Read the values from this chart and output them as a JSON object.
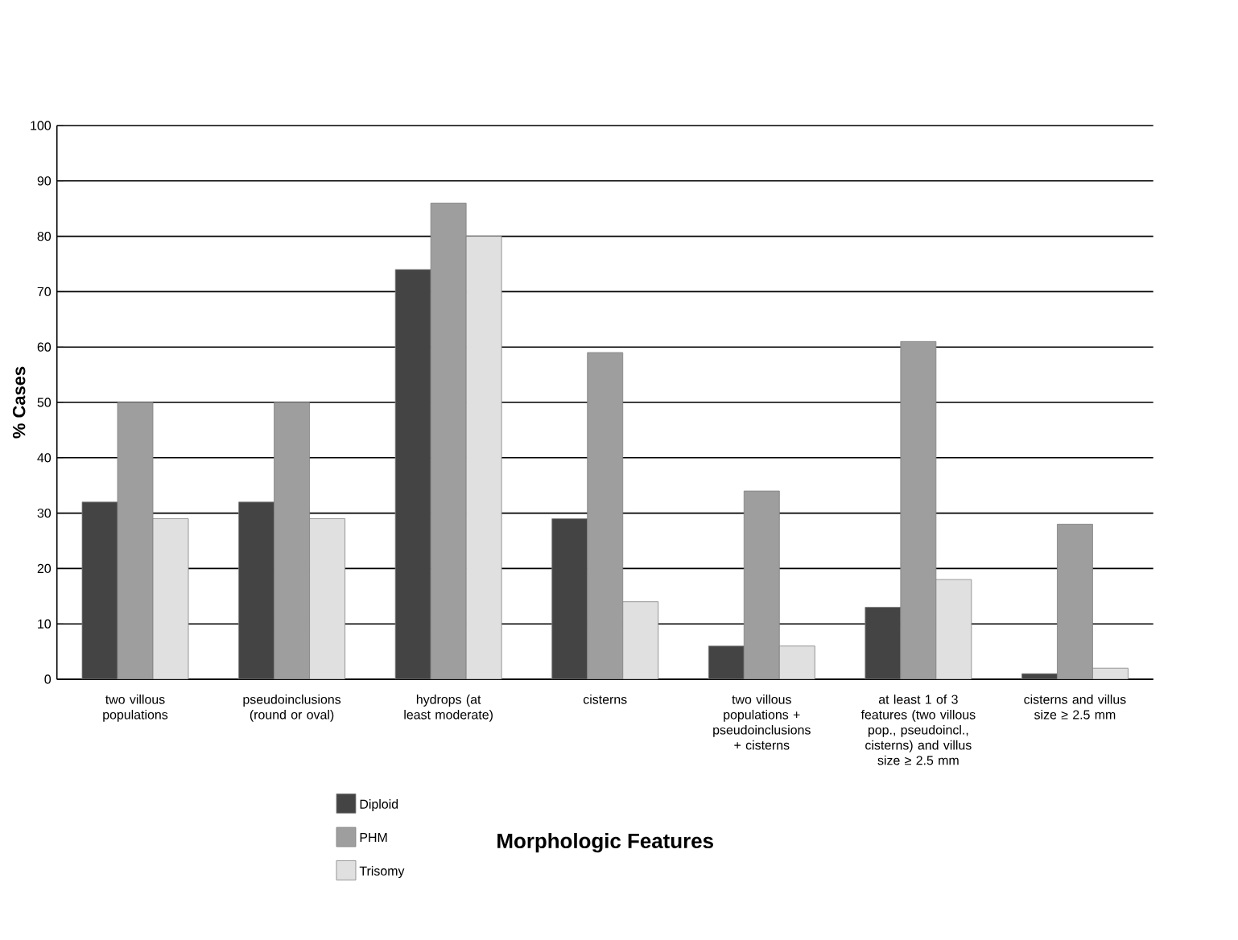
{
  "chart_data": {
    "type": "bar",
    "xlabel": "Morphologic Features",
    "ylabel": "% Cases",
    "categories": [
      "two villous populations",
      "pseudoinclusions (round or oval)",
      "hydrops (at least moderate)",
      "cisterns",
      "two villous populations + pseudoinclusions + cisterns",
      "at least 1 of 3 features (two villous pop., pseudoincl., cisterns) and villus size ≥ 2.5 mm",
      "cisterns and villus size ≥ 2.5 mm"
    ],
    "series": [
      {
        "name": "Diploid",
        "color": "#444444",
        "values": [
          32,
          32,
          74,
          29,
          6,
          13,
          1
        ]
      },
      {
        "name": "PHM",
        "color": "#9e9e9e",
        "values": [
          50,
          50,
          86,
          59,
          34,
          61,
          28
        ]
      },
      {
        "name": "Trisomy",
        "color": "#e0e0e0",
        "values": [
          29,
          29,
          80,
          14,
          6,
          18,
          2
        ]
      }
    ],
    "ylim": [
      0,
      100
    ],
    "yticks": [
      0,
      10,
      20,
      30,
      40,
      50,
      60,
      70,
      80,
      90,
      100
    ],
    "grid": "y",
    "legend": "bottom left"
  }
}
